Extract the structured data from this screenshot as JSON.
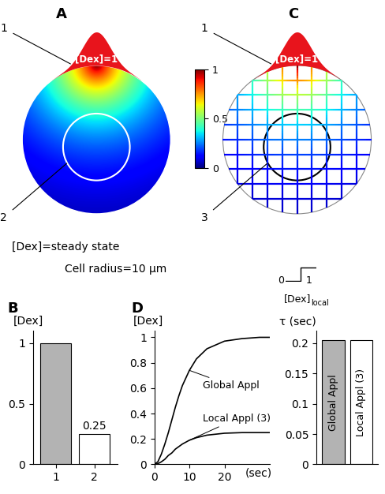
{
  "chart_data": [
    {
      "type": "field",
      "panel": "A",
      "labels": [
        "1",
        "2"
      ],
      "source_label": "[Dex]=1",
      "caption": "[Dex]=steady state",
      "note": "Cell radius=10 μm",
      "radius": 10,
      "colorbar": {
        "range": [
          0,
          1
        ],
        "ticks": [
          0,
          0.5,
          1
        ]
      }
    },
    {
      "type": "bar",
      "panel": "B",
      "y_label": "[Dex]",
      "categories": [
        "1",
        "2"
      ],
      "values": [
        1,
        0.25
      ],
      "value_labels": [
        null,
        "0.25"
      ],
      "data_labels": true,
      "colors": [
        "#b3b3b3",
        "#ffffff"
      ],
      "ylim": [
        0,
        1.1
      ],
      "yticks": [
        0,
        0.5,
        1
      ]
    },
    {
      "type": "grid",
      "panel": "C",
      "labels": [
        "1",
        "3"
      ],
      "source_label": "[Dex]=1",
      "step_label": "[Dex]",
      "step_subscript": "local",
      "step_values": [
        0,
        1
      ]
    },
    {
      "type": "line",
      "panel": "D",
      "y_label": "[Dex]",
      "x_label": "(sec)",
      "x": [
        0,
        1,
        2,
        3,
        4,
        5,
        6,
        7,
        8,
        10,
        12,
        15,
        20,
        25,
        30,
        33
      ],
      "series": [
        {
          "name": "Global Appl",
          "color": "#000000",
          "values": [
            0,
            0.02,
            0.08,
            0.16,
            0.25,
            0.35,
            0.45,
            0.54,
            0.62,
            0.74,
            0.83,
            0.91,
            0.97,
            0.99,
            1.0,
            1.0
          ]
        },
        {
          "name": "Local Appl (3)",
          "color": "#000000",
          "values": [
            0,
            0.005,
            0.02,
            0.04,
            0.07,
            0.09,
            0.12,
            0.14,
            0.16,
            0.19,
            0.21,
            0.23,
            0.245,
            0.25,
            0.25,
            0.25
          ]
        }
      ],
      "xlim": [
        0,
        33
      ],
      "ylim": [
        0,
        1.05
      ],
      "xticks": [
        0,
        10,
        20
      ],
      "yticks": [
        0,
        0.2,
        0.4,
        0.6,
        0.8,
        1
      ]
    },
    {
      "type": "bar",
      "y_label": "τ (sec)",
      "categories": [
        "Global Appl",
        "Local Appl (3)"
      ],
      "values": [
        0.205,
        0.205
      ],
      "colors": [
        "#b3b3b3",
        "#ffffff"
      ],
      "ylim": [
        0,
        0.22
      ],
      "yticks": [
        0,
        0.05,
        0.1,
        0.15,
        0.2
      ],
      "tick_labels": "y"
    }
  ]
}
